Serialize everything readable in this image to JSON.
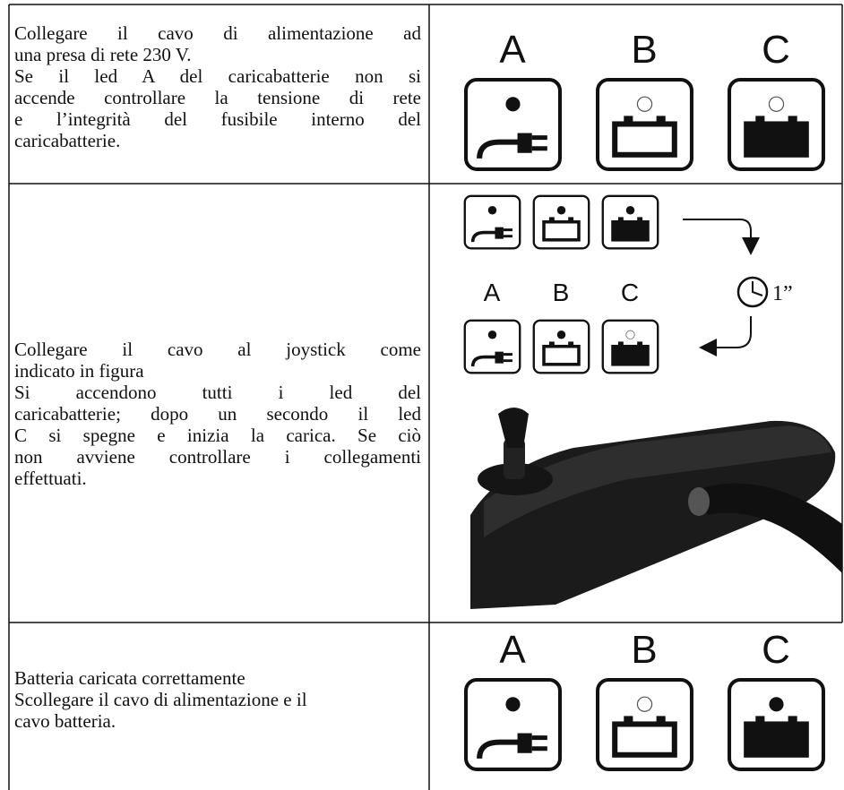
{
  "rows": [
    {
      "text": [
        "Collegare il cavo di alimentazione ad",
        "una presa di rete 230 V.",
        "Se il led A del caricabatterie non si",
        "accende controllare la tensione di rete",
        "e l’integrità del fusibile interno del",
        "caricabatterie."
      ],
      "figure_labels": [
        "A",
        "B",
        "C"
      ]
    },
    {
      "text": [
        "Collegare il cavo al joystick come",
        "indicato in figura",
        "Si accendono tutti i led del",
        "caricabatterie; dopo un secondo il led",
        "C si spegne e inizia la carica. Se ciò",
        "non avviene controllare i collegamenti",
        "effettuati."
      ],
      "figure_labels": [
        "A",
        "B",
        "C"
      ],
      "timer_label": "1”"
    },
    {
      "text": [
        "Batteria caricata correttamente",
        "Scollegare il cavo di alimentazione e il",
        "cavo batteria."
      ],
      "figure_labels": [
        "A",
        "B",
        "C"
      ]
    }
  ]
}
